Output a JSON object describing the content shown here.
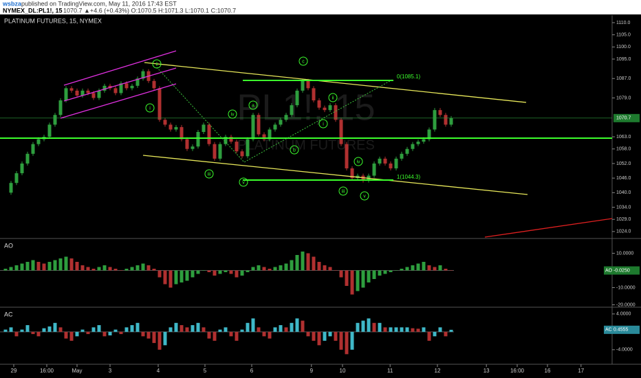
{
  "header": {
    "author": "wsbza",
    "published": "published on TradingView.com, May 11, 2016 17:43 EST",
    "symbol": "NYMEX_DL:PL1!, 15",
    "quote": "1070.7 ▲+4.6 (+0.43%) O:1070.5 H:1071.3 L:1070.1 C:1070.7"
  },
  "chart_data": [
    {
      "type": "candlestick",
      "title": "PLATINUM FUTURES, 15, NYMEX",
      "watermark": "PL1!, 15",
      "watermark_sub": "PLATINUM FUTURES",
      "color_up": "#2e9e3e",
      "color_down": "#b03030",
      "x": [
        1,
        2,
        3,
        4,
        5,
        6,
        7,
        8,
        9,
        10,
        11,
        12,
        13,
        14,
        15,
        16,
        17,
        18,
        19,
        20,
        21,
        22,
        23,
        24,
        25,
        26,
        27,
        28,
        29,
        30,
        31,
        32,
        33,
        34,
        35,
        36,
        37,
        38,
        39,
        40,
        41,
        42,
        43,
        44,
        45,
        46,
        47,
        48,
        49,
        50,
        51,
        52,
        53,
        54,
        55,
        56,
        57,
        58,
        59,
        60,
        61,
        62,
        63,
        64,
        65,
        66,
        67,
        68,
        69,
        70,
        71,
        72,
        73,
        74,
        75,
        76,
        77,
        78,
        79,
        80,
        81,
        82
      ],
      "close": [
        1040,
        1044,
        1048,
        1052,
        1056,
        1060,
        1062,
        1063,
        1068,
        1072,
        1078,
        1083,
        1082,
        1080,
        1082,
        1081,
        1079,
        1082,
        1084,
        1083,
        1081,
        1085,
        1083,
        1084,
        1087,
        1090,
        1086,
        1083,
        1070,
        1068,
        1066,
        1067,
        1062,
        1058,
        1059,
        1065,
        1068,
        1060,
        1054,
        1060,
        1063,
        1061,
        1057,
        1055,
        1062,
        1072,
        1064,
        1062,
        1066,
        1068,
        1070,
        1072,
        1076,
        1082,
        1086,
        1083,
        1078,
        1075,
        1074,
        1076,
        1070,
        1060,
        1050,
        1046,
        1047,
        1045,
        1047,
        1052,
        1054,
        1052,
        1050,
        1054,
        1056,
        1058,
        1060,
        1061,
        1062,
        1066,
        1074,
        1072,
        1068,
        1070.7
      ],
      "xlim": [
        0,
        111.25
      ],
      "xticks": [
        {
          "value": 2.5,
          "label": "29"
        },
        {
          "value": 8.5,
          "label": "16:00"
        },
        {
          "value": 14,
          "label": "May"
        },
        {
          "value": 20,
          "label": "3"
        },
        {
          "value": 28.75,
          "label": "4"
        },
        {
          "value": 37.25,
          "label": "5"
        },
        {
          "value": 45.75,
          "label": "6"
        },
        {
          "value": 56.6,
          "label": "9"
        },
        {
          "value": 62.25,
          "label": "10"
        },
        {
          "value": 70.9,
          "label": "11"
        },
        {
          "value": 79.5,
          "label": "12"
        },
        {
          "value": 88.4,
          "label": "13"
        },
        {
          "value": 94,
          "label": "16:00"
        },
        {
          "value": 99.5,
          "label": "16"
        },
        {
          "value": 105.6,
          "label": "17"
        }
      ],
      "ylim": [
        1021.7,
        1113.1
      ],
      "yticks": [
        {
          "value": 1110,
          "label": "1110.0"
        },
        {
          "value": 1105,
          "label": "1105.0"
        },
        {
          "value": 1100,
          "label": "1100.0"
        },
        {
          "value": 1095,
          "label": "1095.0"
        },
        {
          "value": 1087,
          "label": "1087.0"
        },
        {
          "value": 1079,
          "label": "1079.0"
        },
        {
          "value": 1063,
          "label": "1063.0"
        },
        {
          "value": 1058,
          "label": "1058.0"
        },
        {
          "value": 1052,
          "label": "1052.0"
        },
        {
          "value": 1046,
          "label": "1046.0"
        },
        {
          "value": 1040,
          "label": "1040.0"
        },
        {
          "value": 1034,
          "label": "1034.0"
        },
        {
          "value": 1029,
          "label": "1029.0"
        },
        {
          "value": 1024,
          "label": "1024.0"
        }
      ],
      "last_price": {
        "value": 1070.7,
        "label": "1070.7"
      },
      "annotations": [
        "ii",
        "i",
        "iv",
        "a",
        "c",
        "ii",
        "i",
        "b",
        "iii",
        "v",
        "iv",
        "iii",
        "v",
        "0(1085.1)",
        "1(1044.3)"
      ]
    },
    {
      "type": "bar",
      "title": "AO",
      "color_up": "#2e9e3e",
      "color_down": "#b03030",
      "values": [
        1,
        2,
        3,
        4,
        5,
        6,
        5,
        4,
        5,
        6,
        7,
        8,
        7,
        5,
        3,
        2,
        1,
        2,
        3,
        2,
        1,
        0,
        1,
        2,
        3,
        4,
        3,
        1,
        -4,
        -8,
        -10,
        -8,
        -7,
        -6,
        -4,
        -2,
        0,
        -1,
        -3,
        -2,
        -1,
        -2,
        -4,
        -3,
        -1,
        2,
        3,
        2,
        1,
        2,
        3,
        4,
        6,
        9,
        11,
        10,
        8,
        5,
        3,
        2,
        0,
        -4,
        -9,
        -14,
        -12,
        -10,
        -7,
        -5,
        -3,
        -2,
        -1,
        0,
        1,
        2,
        3,
        4,
        5,
        3,
        2,
        3,
        1,
        -0.025
      ],
      "ylim": [
        -21,
        17.8
      ],
      "yticks": [
        {
          "value": 10,
          "label": "10.0000"
        },
        {
          "value": -10,
          "label": "-10.0000"
        },
        {
          "value": -20,
          "label": "-20.0000"
        }
      ],
      "last_value": {
        "value": -0.025,
        "label": "-0.0250"
      }
    },
    {
      "type": "bar",
      "title": "AC",
      "color_up": "#3fb8c8",
      "color_down": "#b03030",
      "values": [
        0.5,
        1,
        -1,
        0.5,
        1.5,
        -0.5,
        -1,
        0.8,
        1.2,
        2,
        1,
        -1.5,
        -2,
        -1,
        0.5,
        -0.5,
        1,
        1.5,
        -1,
        -0.8,
        0.5,
        -0.5,
        1,
        1.5,
        2,
        -1,
        -1.5,
        -2.5,
        -4,
        -3,
        1,
        2,
        1.5,
        1,
        1.5,
        2,
        1,
        -1.5,
        -2,
        0.5,
        1,
        -1,
        -2,
        0.5,
        2,
        3,
        1,
        -1,
        -1.5,
        1,
        1.5,
        1,
        2,
        3,
        2.5,
        -1,
        -2,
        -3,
        -2,
        -1,
        -2,
        -4,
        -5,
        -4,
        2,
        2.5,
        3,
        2,
        2,
        1,
        1,
        1,
        1,
        1,
        0.8,
        0.7,
        1,
        -2,
        -1,
        1,
        -1,
        0.4555
      ],
      "ylim": [
        -7.1,
        5.2
      ],
      "yticks": [
        {
          "value": 4,
          "label": "4.0000"
        },
        {
          "value": -4,
          "label": "-4.0000"
        }
      ],
      "last_value": {
        "value": 0.4555,
        "label": "0.4555"
      }
    }
  ]
}
